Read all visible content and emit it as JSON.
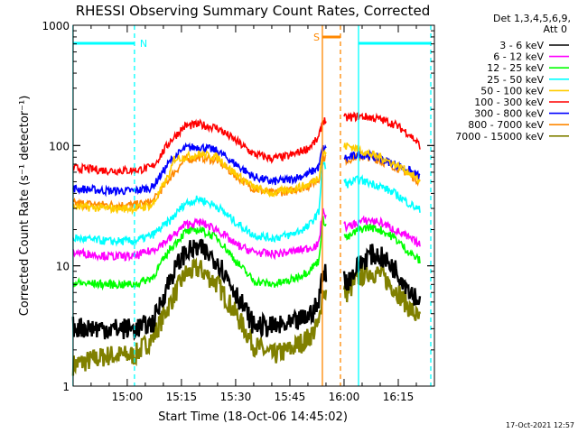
{
  "chart_data": {
    "type": "line",
    "title": "RHESSI Observing Summary Count Rates, Corrected",
    "xlabel": "Start Time (18-Oct-06 14:45:02)",
    "ylabel": "Corrected Count Rate (s⁻¹ detector⁻¹)",
    "yscale": "log",
    "ylim": [
      1,
      1000
    ],
    "xlim": [
      "14:45:02",
      "16:25:00"
    ],
    "x_ticks": [
      "15:00",
      "15:15",
      "15:30",
      "15:45",
      "16:00",
      "16:15"
    ],
    "y_ticks": [
      "1",
      "10",
      "100",
      "1000"
    ],
    "legend_header": [
      "Det 1,3,4,5,6,9,",
      "Att 0"
    ],
    "legend_position": "top-right, outside plot",
    "series": [
      {
        "name": "3 - 6 keV",
        "color": "#000000",
        "points": [
          [
            "14:45",
            3.1
          ],
          [
            "14:55",
            3.0
          ],
          [
            "15:02",
            3.0
          ],
          [
            "15:07",
            3.3
          ],
          [
            "15:12",
            8
          ],
          [
            "15:16",
            13
          ],
          [
            "15:20",
            14
          ],
          [
            "15:25",
            11
          ],
          [
            "15:30",
            6
          ],
          [
            "15:35",
            3.2
          ],
          [
            "15:40",
            3.1
          ],
          [
            "15:45",
            3.2
          ],
          [
            "15:50",
            3.8
          ],
          [
            "15:53",
            4.8
          ],
          [
            "15:54",
            9
          ],
          [
            "16:01",
            7.5
          ],
          [
            "16:04",
            10
          ],
          [
            "16:07",
            12.5
          ],
          [
            "16:10",
            12
          ],
          [
            "16:14",
            9.5
          ],
          [
            "16:18",
            6.5
          ],
          [
            "16:21",
            5
          ]
        ]
      },
      {
        "name": "6 - 12 keV",
        "color": "#ff00ff",
        "points": [
          [
            "14:45",
            13
          ],
          [
            "14:55",
            12
          ],
          [
            "15:02",
            12
          ],
          [
            "15:07",
            13.5
          ],
          [
            "15:12",
            17
          ],
          [
            "15:16",
            22
          ],
          [
            "15:20",
            23
          ],
          [
            "15:25",
            20
          ],
          [
            "15:30",
            15
          ],
          [
            "15:35",
            13
          ],
          [
            "15:40",
            12.5
          ],
          [
            "15:45",
            13
          ],
          [
            "15:50",
            14
          ],
          [
            "15:53",
            15
          ],
          [
            "15:54",
            28
          ],
          [
            "16:01",
            21
          ],
          [
            "16:04",
            23
          ],
          [
            "16:07",
            24
          ],
          [
            "16:10",
            23
          ],
          [
            "16:14",
            20
          ],
          [
            "16:18",
            17
          ],
          [
            "16:21",
            15
          ]
        ]
      },
      {
        "name": "12 - 25 keV",
        "color": "#00ff00",
        "points": [
          [
            "14:45",
            7.2
          ],
          [
            "14:55",
            7.0
          ],
          [
            "15:02",
            7.0
          ],
          [
            "15:07",
            8
          ],
          [
            "15:12",
            14
          ],
          [
            "15:16",
            19
          ],
          [
            "15:20",
            20
          ],
          [
            "15:25",
            17
          ],
          [
            "15:30",
            11
          ],
          [
            "15:35",
            7.5
          ],
          [
            "15:40",
            7.0
          ],
          [
            "15:45",
            7.5
          ],
          [
            "15:50",
            9
          ],
          [
            "15:53",
            11
          ],
          [
            "15:54",
            24
          ],
          [
            "16:01",
            17
          ],
          [
            "16:04",
            20
          ],
          [
            "16:07",
            21
          ],
          [
            "16:10",
            20
          ],
          [
            "16:14",
            17
          ],
          [
            "16:18",
            13
          ],
          [
            "16:21",
            11
          ]
        ]
      },
      {
        "name": "25 - 50 keV",
        "color": "#00ffff",
        "points": [
          [
            "14:45",
            17
          ],
          [
            "14:55",
            16
          ],
          [
            "15:02",
            16
          ],
          [
            "15:07",
            18
          ],
          [
            "15:12",
            24
          ],
          [
            "15:16",
            33
          ],
          [
            "15:20",
            36
          ],
          [
            "15:25",
            31
          ],
          [
            "15:30",
            23
          ],
          [
            "15:35",
            18
          ],
          [
            "15:40",
            17
          ],
          [
            "15:45",
            18
          ],
          [
            "15:50",
            21
          ],
          [
            "15:53",
            28
          ],
          [
            "15:54",
            70
          ],
          [
            "16:01",
            48
          ],
          [
            "16:04",
            52
          ],
          [
            "16:07",
            49
          ],
          [
            "16:10",
            46
          ],
          [
            "16:14",
            40
          ],
          [
            "16:18",
            33
          ],
          [
            "16:21",
            29
          ]
        ]
      },
      {
        "name": "50 - 100 keV",
        "color": "#ffcc00",
        "points": [
          [
            "14:45",
            31
          ],
          [
            "14:55",
            30
          ],
          [
            "15:02",
            30
          ],
          [
            "15:07",
            32
          ],
          [
            "15:12",
            60
          ],
          [
            "15:13",
            78
          ],
          [
            "15:16",
            80
          ],
          [
            "15:20",
            85
          ],
          [
            "15:25",
            80
          ],
          [
            "15:30",
            58
          ],
          [
            "15:35",
            45
          ],
          [
            "15:40",
            40
          ],
          [
            "15:45",
            43
          ],
          [
            "15:50",
            47
          ],
          [
            "15:53",
            55
          ],
          [
            "15:54",
            85
          ],
          [
            "16:01",
            100
          ],
          [
            "16:04",
            93
          ],
          [
            "16:07",
            85
          ],
          [
            "16:10",
            80
          ],
          [
            "16:14",
            70
          ],
          [
            "16:18",
            60
          ],
          [
            "16:21",
            50
          ]
        ]
      },
      {
        "name": "100 - 300 keV",
        "color": "#ff0000",
        "points": [
          [
            "14:45",
            65
          ],
          [
            "14:55",
            62
          ],
          [
            "15:02",
            62
          ],
          [
            "15:07",
            66
          ],
          [
            "15:12",
            110
          ],
          [
            "15:16",
            145
          ],
          [
            "15:20",
            150
          ],
          [
            "15:25",
            140
          ],
          [
            "15:30",
            110
          ],
          [
            "15:35",
            85
          ],
          [
            "15:40",
            78
          ],
          [
            "15:45",
            82
          ],
          [
            "15:50",
            95
          ],
          [
            "15:53",
            115
          ],
          [
            "15:54",
            160
          ],
          [
            "16:01",
            170
          ],
          [
            "16:04",
            175
          ],
          [
            "16:07",
            172
          ],
          [
            "16:10",
            165
          ],
          [
            "16:14",
            150
          ],
          [
            "16:18",
            125
          ],
          [
            "16:21",
            100
          ]
        ]
      },
      {
        "name": "300 - 800 keV",
        "color": "#0000ff",
        "points": [
          [
            "14:45",
            44
          ],
          [
            "14:55",
            42
          ],
          [
            "15:02",
            42
          ],
          [
            "15:07",
            45
          ],
          [
            "15:12",
            75
          ],
          [
            "15:16",
            95
          ],
          [
            "15:20",
            98
          ],
          [
            "15:25",
            90
          ],
          [
            "15:30",
            70
          ],
          [
            "15:35",
            55
          ],
          [
            "15:40",
            50
          ],
          [
            "15:45",
            52
          ],
          [
            "15:50",
            58
          ],
          [
            "15:53",
            66
          ],
          [
            "15:54",
            95
          ],
          [
            "16:01",
            78
          ],
          [
            "16:04",
            85
          ],
          [
            "16:07",
            82
          ],
          [
            "16:10",
            78
          ],
          [
            "16:14",
            70
          ],
          [
            "16:18",
            62
          ],
          [
            "16:21",
            55
          ]
        ]
      },
      {
        "name": "800 - 7000 keV",
        "color": "#ff8800",
        "points": [
          [
            "14:45",
            33
          ],
          [
            "14:55",
            32
          ],
          [
            "15:02",
            32
          ],
          [
            "15:07",
            34
          ],
          [
            "15:12",
            55
          ],
          [
            "15:16",
            76
          ],
          [
            "15:20",
            80
          ],
          [
            "15:25",
            75
          ],
          [
            "15:30",
            56
          ],
          [
            "15:35",
            44
          ],
          [
            "15:40",
            40
          ],
          [
            "15:45",
            42
          ],
          [
            "15:50",
            46
          ],
          [
            "15:53",
            52
          ],
          [
            "15:54",
            80
          ],
          [
            "16:01",
            76
          ],
          [
            "16:04",
            82
          ],
          [
            "16:07",
            80
          ],
          [
            "16:10",
            75
          ],
          [
            "16:14",
            67
          ],
          [
            "16:18",
            58
          ],
          [
            "16:21",
            50
          ]
        ]
      },
      {
        "name": "7000 - 15000 keV",
        "color": "#808000",
        "points": [
          [
            "14:45",
            1.5
          ],
          [
            "14:55",
            1.8
          ],
          [
            "15:02",
            1.8
          ],
          [
            "15:07",
            2.5
          ],
          [
            "15:12",
            5
          ],
          [
            "15:16",
            8.5
          ],
          [
            "15:20",
            9.5
          ],
          [
            "15:25",
            7
          ],
          [
            "15:30",
            4
          ],
          [
            "15:35",
            2.2
          ],
          [
            "15:40",
            1.8
          ],
          [
            "15:45",
            2.0
          ],
          [
            "15:50",
            2.5
          ],
          [
            "15:53",
            3.2
          ],
          [
            "15:54",
            6
          ],
          [
            "16:01",
            6
          ],
          [
            "16:04",
            8
          ],
          [
            "16:07",
            9
          ],
          [
            "16:10",
            8.5
          ],
          [
            "16:14",
            6.5
          ],
          [
            "16:18",
            4.5
          ],
          [
            "16:21",
            3.5
          ]
        ]
      }
    ],
    "flags": [
      {
        "label": "N",
        "color": "#00ffff",
        "start": "14:45",
        "end": "15:02"
      },
      {
        "label": "",
        "color": "#00ffff",
        "start": "16:04",
        "end": "16:24"
      },
      {
        "label": "S",
        "color": "#ff8800",
        "start": "15:54",
        "end": "15:59"
      }
    ],
    "markers": [
      {
        "time": "14:45",
        "color": "#00ffff",
        "style": "solid"
      },
      {
        "time": "15:02",
        "color": "#00ffff",
        "style": "dashed"
      },
      {
        "time": "15:54",
        "color": "#ff8800",
        "style": "solid"
      },
      {
        "time": "15:59",
        "color": "#ff8800",
        "style": "dashed"
      },
      {
        "time": "16:04",
        "color": "#00ffff",
        "style": "solid"
      },
      {
        "time": "16:24",
        "color": "#00ffff",
        "style": "dashed"
      }
    ],
    "gaps": [
      [
        "15:55",
        "16:00"
      ]
    ]
  },
  "footer": {
    "timestamp": "17-Oct-2021 12:57"
  }
}
